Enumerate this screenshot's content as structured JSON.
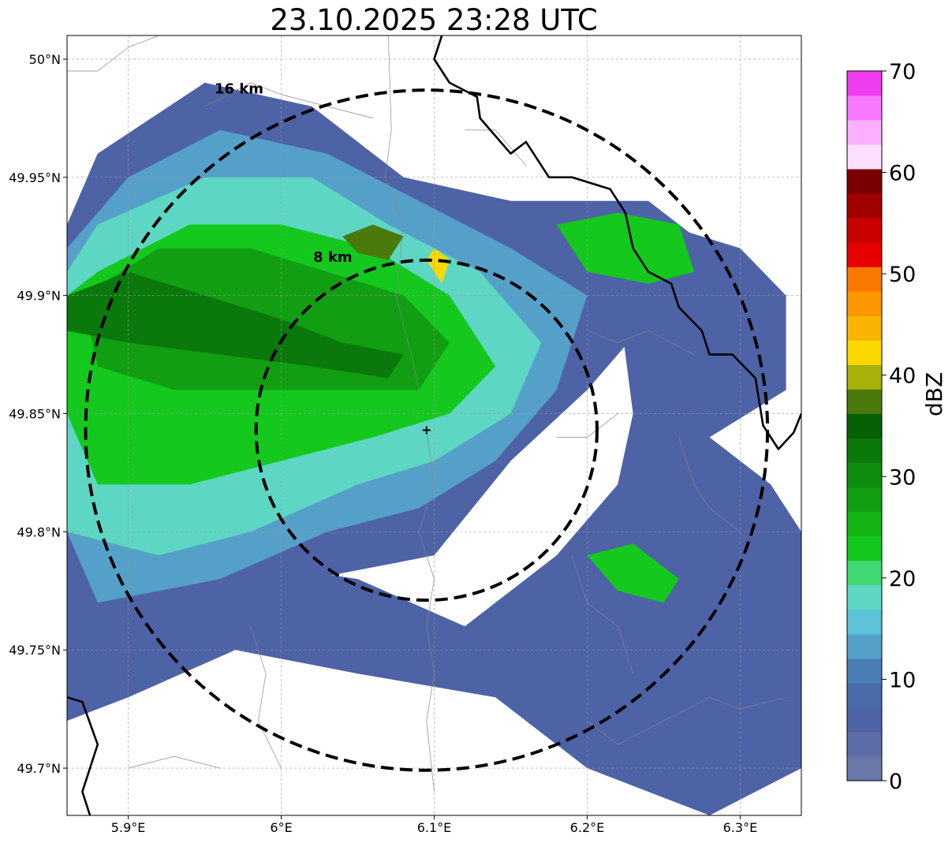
{
  "title": "23.10.2025 23:28 UTC",
  "map": {
    "lon_range": [
      5.86,
      6.34
    ],
    "lat_range": [
      49.68,
      50.01
    ],
    "lon_ticks": [
      {
        "value": 5.9,
        "label": "5.9°E"
      },
      {
        "value": 6.0,
        "label": "6°E"
      },
      {
        "value": 6.1,
        "label": "6.1°E"
      },
      {
        "value": 6.2,
        "label": "6.2°E"
      },
      {
        "value": 6.3,
        "label": "6.3°E"
      }
    ],
    "lat_ticks": [
      {
        "value": 50.0,
        "label": "50°N"
      },
      {
        "value": 49.95,
        "label": "49.95°N"
      },
      {
        "value": 49.9,
        "label": "49.9°N"
      },
      {
        "value": 49.85,
        "label": "49.85°N"
      },
      {
        "value": 49.8,
        "label": "49.8°N"
      },
      {
        "value": 49.75,
        "label": "49.75°N"
      },
      {
        "value": 49.7,
        "label": "49.7°N"
      }
    ],
    "radar_site": {
      "lon": 6.095,
      "lat": 49.843
    },
    "rings": [
      {
        "radius_km": 8,
        "label": "8 km"
      },
      {
        "radius_km": 16,
        "label": "16 km"
      }
    ],
    "river_border": [
      [
        6.105,
        50.01
      ],
      [
        6.1,
        50.0
      ],
      [
        6.11,
        49.99
      ],
      [
        6.128,
        49.984
      ],
      [
        6.13,
        49.975
      ],
      [
        6.15,
        49.96
      ],
      [
        6.16,
        49.965
      ],
      [
        6.175,
        49.95
      ],
      [
        6.19,
        49.95
      ],
      [
        6.215,
        49.945
      ],
      [
        6.225,
        49.935
      ],
      [
        6.23,
        49.92
      ],
      [
        6.24,
        49.91
      ],
      [
        6.255,
        49.905
      ],
      [
        6.26,
        49.895
      ],
      [
        6.275,
        49.885
      ],
      [
        6.28,
        49.875
      ],
      [
        6.295,
        49.875
      ],
      [
        6.31,
        49.865
      ],
      [
        6.315,
        49.845
      ],
      [
        6.325,
        49.835
      ],
      [
        6.335,
        49.842
      ],
      [
        6.34,
        49.85
      ]
    ],
    "border_sw": [
      [
        5.86,
        49.73
      ],
      [
        5.87,
        49.728
      ],
      [
        5.88,
        49.71
      ],
      [
        5.87,
        49.69
      ],
      [
        5.875,
        49.68
      ]
    ],
    "admin_lines": [
      [
        [
          6.07,
          50.01
        ],
        [
          6.072,
          49.97
        ],
        [
          6.068,
          49.95
        ],
        [
          6.08,
          49.93
        ],
        [
          6.075,
          49.9
        ],
        [
          6.085,
          49.875
        ],
        [
          6.09,
          49.86
        ]
      ],
      [
        [
          6.095,
          49.843
        ],
        [
          6.1,
          49.82
        ],
        [
          6.09,
          49.8
        ],
        [
          6.1,
          49.78
        ],
        [
          6.095,
          49.76
        ],
        [
          6.1,
          49.74
        ],
        [
          6.095,
          49.72
        ],
        [
          6.1,
          49.69
        ]
      ],
      [
        [
          5.95,
          49.98
        ],
        [
          5.98,
          49.99
        ],
        [
          6.0,
          49.985
        ],
        [
          6.03,
          49.98
        ],
        [
          6.06,
          49.975
        ]
      ],
      [
        [
          6.12,
          49.97
        ],
        [
          6.14,
          49.97
        ],
        [
          6.16,
          49.955
        ]
      ],
      [
        [
          6.2,
          49.885
        ],
        [
          6.22,
          49.88
        ],
        [
          6.24,
          49.885
        ],
        [
          6.27,
          49.875
        ]
      ],
      [
        [
          6.26,
          49.84
        ],
        [
          6.27,
          49.82
        ],
        [
          6.28,
          49.81
        ],
        [
          6.3,
          49.8
        ]
      ],
      [
        [
          6.18,
          49.84
        ],
        [
          6.2,
          49.84
        ],
        [
          6.22,
          49.85
        ]
      ],
      [
        [
          6.19,
          49.79
        ],
        [
          6.2,
          49.77
        ],
        [
          6.22,
          49.76
        ],
        [
          6.23,
          49.74
        ]
      ],
      [
        [
          6.2,
          49.72
        ],
        [
          6.22,
          49.71
        ],
        [
          6.25,
          49.72
        ],
        [
          6.28,
          49.73
        ],
        [
          6.3,
          49.725
        ],
        [
          6.33,
          49.73
        ]
      ],
      [
        [
          5.86,
          49.995
        ],
        [
          5.88,
          49.995
        ],
        [
          5.9,
          50.005
        ],
        [
          5.92,
          50.01
        ]
      ],
      [
        [
          5.98,
          49.76
        ],
        [
          5.99,
          49.74
        ],
        [
          5.985,
          49.72
        ],
        [
          6.0,
          49.7
        ]
      ],
      [
        [
          5.9,
          49.7
        ],
        [
          5.93,
          49.705
        ],
        [
          5.96,
          49.7
        ]
      ]
    ]
  },
  "echo_regions": [
    {
      "level": 5,
      "points": [
        [
          5.86,
          49.76
        ],
        [
          5.95,
          49.79
        ],
        [
          6.05,
          49.78
        ],
        [
          6.12,
          49.76
        ],
        [
          6.18,
          49.79
        ],
        [
          6.22,
          49.82
        ],
        [
          6.23,
          49.85
        ],
        [
          6.22,
          49.9
        ],
        [
          6.25,
          49.93
        ],
        [
          6.3,
          49.92
        ],
        [
          6.33,
          49.9
        ],
        [
          6.33,
          49.86
        ],
        [
          6.28,
          49.84
        ],
        [
          6.32,
          49.82
        ],
        [
          6.34,
          49.8
        ],
        [
          6.34,
          49.7
        ],
        [
          6.28,
          49.68
        ],
        [
          6.2,
          49.7
        ],
        [
          6.14,
          49.73
        ],
        [
          6.05,
          49.74
        ],
        [
          5.97,
          49.75
        ],
        [
          5.9,
          49.73
        ],
        [
          5.86,
          49.72
        ]
      ]
    },
    {
      "level": 7,
      "points": [
        [
          5.88,
          49.96
        ],
        [
          5.95,
          49.99
        ],
        [
          6.02,
          49.98
        ],
        [
          6.08,
          49.95
        ],
        [
          6.15,
          49.94
        ],
        [
          6.24,
          49.94
        ],
        [
          6.28,
          49.92
        ],
        [
          6.24,
          49.89
        ],
        [
          6.2,
          49.86
        ],
        [
          6.15,
          49.83
        ],
        [
          6.1,
          49.79
        ],
        [
          6.02,
          49.78
        ],
        [
          5.95,
          49.76
        ],
        [
          5.86,
          49.74
        ],
        [
          5.86,
          49.93
        ]
      ]
    },
    {
      "level": 13,
      "points": [
        [
          5.9,
          49.95
        ],
        [
          5.96,
          49.97
        ],
        [
          6.03,
          49.96
        ],
        [
          6.09,
          49.94
        ],
        [
          6.15,
          49.92
        ],
        [
          6.2,
          49.9
        ],
        [
          6.18,
          49.86
        ],
        [
          6.14,
          49.83
        ],
        [
          6.09,
          49.81
        ],
        [
          6.03,
          49.8
        ],
        [
          5.96,
          49.78
        ],
        [
          5.88,
          49.77
        ],
        [
          5.86,
          49.8
        ],
        [
          5.86,
          49.92
        ]
      ]
    },
    {
      "level": 18,
      "points": [
        [
          5.88,
          49.93
        ],
        [
          5.95,
          49.95
        ],
        [
          6.02,
          49.95
        ],
        [
          6.07,
          49.93
        ],
        [
          6.13,
          49.91
        ],
        [
          6.17,
          49.88
        ],
        [
          6.15,
          49.85
        ],
        [
          6.1,
          49.83
        ],
        [
          6.05,
          49.82
        ],
        [
          5.98,
          49.8
        ],
        [
          5.92,
          49.79
        ],
        [
          5.86,
          49.8
        ],
        [
          5.86,
          49.91
        ]
      ]
    },
    {
      "level": 22,
      "points": [
        [
          5.88,
          49.91
        ],
        [
          5.94,
          49.93
        ],
        [
          6.0,
          49.93
        ],
        [
          6.06,
          49.92
        ],
        [
          6.11,
          49.9
        ],
        [
          6.14,
          49.87
        ],
        [
          6.11,
          49.85
        ],
        [
          6.06,
          49.84
        ],
        [
          6.0,
          49.83
        ],
        [
          5.94,
          49.82
        ],
        [
          5.88,
          49.82
        ],
        [
          5.86,
          49.85
        ],
        [
          5.86,
          49.9
        ]
      ]
    },
    {
      "level": 27,
      "points": [
        [
          5.87,
          49.9
        ],
        [
          5.92,
          49.92
        ],
        [
          5.98,
          49.92
        ],
        [
          6.03,
          49.91
        ],
        [
          6.08,
          49.9
        ],
        [
          6.11,
          49.88
        ],
        [
          6.09,
          49.86
        ],
        [
          6.04,
          49.86
        ],
        [
          5.98,
          49.86
        ],
        [
          5.93,
          49.86
        ],
        [
          5.88,
          49.87
        ]
      ]
    },
    {
      "level": 32,
      "points": [
        [
          5.86,
          49.9
        ],
        [
          5.9,
          49.91
        ],
        [
          5.95,
          49.9
        ],
        [
          6.0,
          49.89
        ],
        [
          6.04,
          49.88
        ],
        [
          6.08,
          49.875
        ],
        [
          6.07,
          49.865
        ],
        [
          6.02,
          49.87
        ],
        [
          5.96,
          49.875
        ],
        [
          5.9,
          49.88
        ],
        [
          5.86,
          49.885
        ]
      ]
    },
    {
      "level": 22,
      "points": [
        [
          6.18,
          49.93
        ],
        [
          6.22,
          49.935
        ],
        [
          6.26,
          49.93
        ],
        [
          6.27,
          49.91
        ],
        [
          6.24,
          49.905
        ],
        [
          6.2,
          49.91
        ]
      ]
    },
    {
      "level": 22,
      "points": [
        [
          6.2,
          49.79
        ],
        [
          6.23,
          49.795
        ],
        [
          6.26,
          49.78
        ],
        [
          6.25,
          49.77
        ],
        [
          6.22,
          49.775
        ]
      ]
    },
    {
      "level": 37,
      "points": [
        [
          6.04,
          49.925
        ],
        [
          6.06,
          49.93
        ],
        [
          6.08,
          49.925
        ],
        [
          6.07,
          49.915
        ],
        [
          6.05,
          49.918
        ]
      ]
    },
    {
      "level": 42,
      "points": [
        [
          6.095,
          49.915
        ],
        [
          6.1,
          49.92
        ],
        [
          6.11,
          49.915
        ],
        [
          6.105,
          49.905
        ]
      ]
    }
  ],
  "colorbar": {
    "label": "dBZ",
    "min": 0,
    "max": 70,
    "tick_values": [
      0,
      10,
      20,
      30,
      40,
      50,
      60,
      70
    ],
    "tick_labels": [
      "0",
      "10",
      "20",
      "30",
      "40",
      "50",
      "60",
      "70"
    ],
    "colors": [
      "#6a78aa",
      "#5d6ca6",
      "#4e62a6",
      "#4a6aaa",
      "#4c7eb6",
      "#55a0c8",
      "#5ec3d8",
      "#5ed6c4",
      "#3fd872",
      "#14c81e",
      "#14b414",
      "#129e12",
      "#0e8c0e",
      "#0b780b",
      "#066006",
      "#4a7a0c",
      "#a8b00a",
      "#fad800",
      "#fab400",
      "#fa9600",
      "#fa7800",
      "#e60000",
      "#c80000",
      "#a00000",
      "#780000",
      "#fde0ff",
      "#fbb0ff",
      "#f878ff",
      "#ee3cee"
    ]
  }
}
